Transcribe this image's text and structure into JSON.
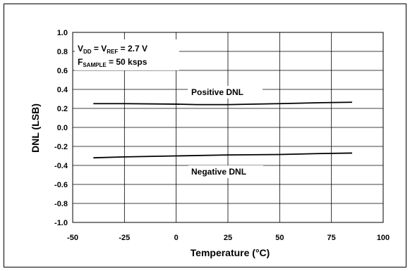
{
  "chart_data": {
    "type": "line",
    "xlabel": "Temperature (°C)",
    "ylabel": "DNL (LSB)",
    "xlim": [
      -50,
      100
    ],
    "ylim": [
      -1.0,
      1.0
    ],
    "xticks": [
      "-50",
      "-25",
      "0",
      "25",
      "50",
      "75",
      "100"
    ],
    "yticks": [
      "1.0",
      "0.8",
      "0.6",
      "0.4",
      "0.2",
      "0.0",
      "-0.2",
      "-0.4",
      "-0.6",
      "-0.8",
      "-1.0"
    ],
    "grid": true,
    "series": [
      {
        "name": "Positive DNL",
        "x": [
          -40,
          -25,
          0,
          10,
          25,
          50,
          70,
          85
        ],
        "y": [
          0.25,
          0.25,
          0.245,
          0.24,
          0.24,
          0.25,
          0.26,
          0.265
        ]
      },
      {
        "name": "Negative DNL",
        "x": [
          -40,
          -25,
          0,
          25,
          50,
          70,
          85
        ],
        "y": [
          -0.32,
          -0.31,
          -0.3,
          -0.29,
          -0.285,
          -0.275,
          -0.27
        ]
      }
    ],
    "conditions": {
      "line1": {
        "a": "V",
        "a_sub": "DD",
        "mid": " = V",
        "b_sub": "REF",
        "rest": " = 2.7 V"
      },
      "line2": {
        "a": "F",
        "a_sub": "SAMPLE",
        "rest": " = 50 ksps"
      }
    },
    "colors": {
      "line": "#000000",
      "grid": "#000000",
      "background": "#ffffff"
    }
  }
}
